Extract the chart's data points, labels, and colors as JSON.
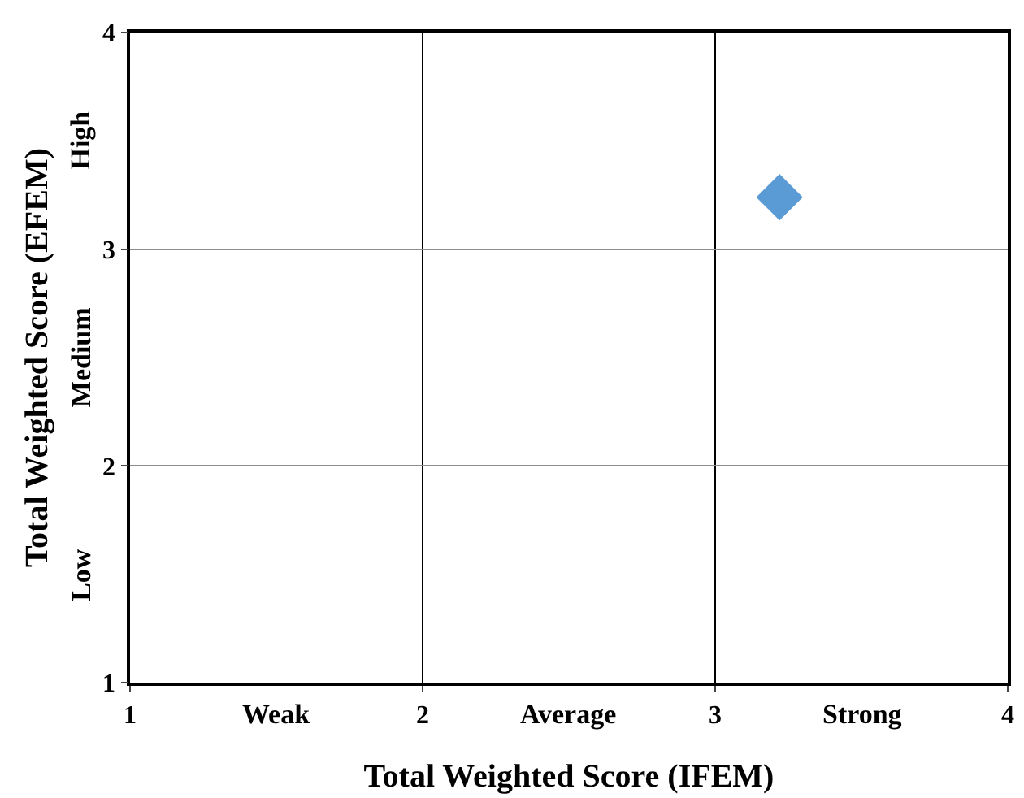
{
  "chart_data": {
    "type": "scatter",
    "xlabel": "Total Weighted Score (IFEM)",
    "ylabel": "Total Weighted Score (EFEM)",
    "x": [
      3.22
    ],
    "values": [
      3.24
    ],
    "color": "#5b9bd5",
    "marker": "diamond",
    "xlim": [
      1,
      4
    ],
    "ylim": [
      1,
      4
    ],
    "xticks": [
      1,
      2,
      3,
      4
    ],
    "yticks": [
      1,
      2,
      3,
      4
    ],
    "grid": true,
    "annotations": [
      "Weak",
      "Average",
      "Strong",
      "Low",
      "Medium",
      "High"
    ]
  }
}
